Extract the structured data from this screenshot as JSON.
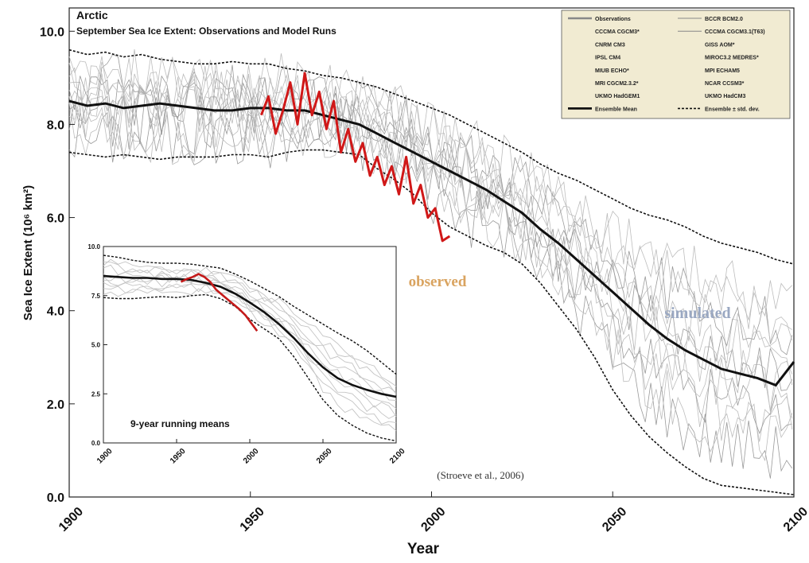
{
  "chart_data": [
    {
      "type": "line",
      "title": "Arctic",
      "subtitle": "September Sea Ice Extent: Observations and Model Runs",
      "xlabel": "Year",
      "ylabel": "Sea Ice Extent (10⁶ km²)",
      "xlim": [
        1900,
        2100
      ],
      "ylim": [
        0,
        10.5
      ],
      "x_ticks": [
        "1900",
        "1950",
        "2000",
        "2050",
        "2100"
      ],
      "y_ticks": [
        "0.0",
        "2.0",
        "4.0",
        "6.0",
        "8.0",
        "10.0"
      ],
      "legend_position": "top-right",
      "legend": [
        {
          "label": "Observations",
          "style": "gray-thick"
        },
        {
          "label": "BCCR BCM2.0",
          "style": "gray-thin"
        },
        {
          "label": "CCCMA CGCM3*",
          "style": "none"
        },
        {
          "label": "CCCMA CGCM3.1(T63)",
          "style": "gray-thin"
        },
        {
          "label": "CNRM CM3",
          "style": "none"
        },
        {
          "label": "GISS AOM*",
          "style": "none"
        },
        {
          "label": "IPSL CM4",
          "style": "none"
        },
        {
          "label": "MIROC3.2 MEDRES*",
          "style": "none"
        },
        {
          "label": "MIUB ECHO*",
          "style": "none"
        },
        {
          "label": "MPI ECHAM5",
          "style": "none"
        },
        {
          "label": "MRI CGCM2.3.2*",
          "style": "none"
        },
        {
          "label": "NCAR CCSM3*",
          "style": "none"
        },
        {
          "label": "UKMO HadGEM1",
          "style": "none"
        },
        {
          "label": "UKMO HadCM3",
          "style": "none"
        },
        {
          "label": "Ensemble Mean",
          "style": "black-thick"
        },
        {
          "label": "Ensemble ± std. dev.",
          "style": "black-dashed"
        }
      ],
      "annotations": {
        "observed": "observed",
        "simulated": "simulated",
        "citation": "(Stroeve et al., 2006)"
      },
      "series": [
        {
          "name": "Ensemble Mean",
          "x": [
            1900,
            1905,
            1910,
            1915,
            1920,
            1925,
            1930,
            1935,
            1940,
            1945,
            1950,
            1955,
            1960,
            1965,
            1970,
            1975,
            1980,
            1985,
            1990,
            1995,
            2000,
            2005,
            2010,
            2015,
            2020,
            2025,
            2030,
            2035,
            2040,
            2045,
            2050,
            2055,
            2060,
            2065,
            2070,
            2075,
            2080,
            2085,
            2090,
            2095,
            2100
          ],
          "y": [
            8.5,
            8.4,
            8.45,
            8.35,
            8.4,
            8.45,
            8.4,
            8.35,
            8.3,
            8.3,
            8.35,
            8.35,
            8.3,
            8.3,
            8.2,
            8.1,
            8.0,
            7.8,
            7.6,
            7.4,
            7.2,
            7.0,
            6.8,
            6.6,
            6.35,
            6.1,
            5.75,
            5.45,
            5.1,
            4.75,
            4.4,
            4.05,
            3.7,
            3.4,
            3.15,
            2.95,
            2.75,
            2.65,
            2.55,
            2.4,
            2.9
          ]
        },
        {
          "name": "Ensemble ± std. dev.",
          "x": [
            1900,
            1905,
            1910,
            1915,
            1920,
            1925,
            1930,
            1935,
            1940,
            1945,
            1950,
            1955,
            1960,
            1965,
            1970,
            1975,
            1980,
            1985,
            1990,
            1995,
            2000,
            2005,
            2010,
            2015,
            2020,
            2025,
            2030,
            2035,
            2040,
            2045,
            2050,
            2055,
            2060,
            2065,
            2070,
            2075,
            2080,
            2085,
            2090,
            2095,
            2100
          ],
          "y": [
            9.6,
            9.5,
            9.55,
            9.45,
            9.5,
            9.4,
            9.35,
            9.3,
            9.3,
            9.35,
            9.3,
            9.3,
            9.2,
            9.15,
            9.05,
            9.0,
            8.9,
            8.8,
            8.65,
            8.5,
            8.35,
            8.2,
            8.0,
            7.8,
            7.6,
            7.4,
            7.15,
            6.95,
            6.8,
            6.6,
            6.4,
            6.2,
            6.05,
            5.95,
            5.8,
            5.6,
            5.45,
            5.35,
            5.25,
            5.1,
            5.0
          ]
        },
        {
          "name": "Ensemble ± std. dev.",
          "x": [
            1900,
            1905,
            1910,
            1915,
            1920,
            1925,
            1930,
            1935,
            1940,
            1945,
            1950,
            1955,
            1960,
            1965,
            1970,
            1975,
            1980,
            1985,
            1990,
            1995,
            2000,
            2005,
            2010,
            2015,
            2020,
            2025,
            2030,
            2035,
            2040,
            2045,
            2050,
            2055,
            2060,
            2065,
            2070,
            2075,
            2080,
            2085,
            2090,
            2095,
            2100
          ],
          "y": [
            7.4,
            7.35,
            7.3,
            7.35,
            7.3,
            7.25,
            7.3,
            7.3,
            7.3,
            7.35,
            7.35,
            7.3,
            7.4,
            7.45,
            7.45,
            7.4,
            7.35,
            7.05,
            6.8,
            6.5,
            6.1,
            5.8,
            5.6,
            5.4,
            5.25,
            5.0,
            4.6,
            4.1,
            3.6,
            3.0,
            2.3,
            1.75,
            1.3,
            0.95,
            0.65,
            0.4,
            0.25,
            0.2,
            0.15,
            0.1,
            0.05
          ]
        },
        {
          "name": "Observations",
          "x": [
            1953,
            1955,
            1957,
            1959,
            1961,
            1963,
            1965,
            1967,
            1969,
            1971,
            1973,
            1975,
            1977,
            1979,
            1981,
            1983,
            1985,
            1987,
            1989,
            1991,
            1993,
            1995,
            1997,
            1999,
            2001,
            2003,
            2005
          ],
          "y": [
            8.2,
            8.6,
            7.8,
            8.3,
            8.9,
            8.0,
            9.1,
            8.2,
            8.7,
            7.9,
            8.5,
            7.4,
            7.9,
            7.2,
            7.6,
            6.9,
            7.3,
            6.7,
            7.1,
            6.5,
            7.3,
            6.3,
            6.7,
            6.0,
            6.2,
            5.5,
            5.6
          ]
        }
      ]
    },
    {
      "type": "line",
      "title": "9-year running means",
      "xlim": [
        1900,
        2100
      ],
      "ylim": [
        0,
        10
      ],
      "x_ticks": [
        "1900",
        "1950",
        "2000",
        "2050",
        "2100"
      ],
      "y_ticks": [
        "0.0",
        "2.5",
        "5.0",
        "7.5",
        "10.0"
      ],
      "series": [
        {
          "name": "Ensemble Mean",
          "x": [
            1900,
            1910,
            1920,
            1930,
            1940,
            1950,
            1960,
            1970,
            1980,
            1990,
            2000,
            2010,
            2020,
            2030,
            2040,
            2050,
            2060,
            2070,
            2080,
            2090,
            2100
          ],
          "y": [
            8.5,
            8.45,
            8.4,
            8.4,
            8.35,
            8.35,
            8.3,
            8.15,
            7.95,
            7.6,
            7.15,
            6.65,
            6.05,
            5.35,
            4.55,
            3.85,
            3.3,
            2.95,
            2.7,
            2.5,
            2.35
          ]
        },
        {
          "name": "Ensemble ± std. dev.",
          "x": [
            1900,
            1910,
            1920,
            1930,
            1940,
            1950,
            1960,
            1970,
            1980,
            1990,
            2000,
            2010,
            2020,
            2030,
            2040,
            2050,
            2060,
            2070,
            2080,
            2090,
            2100
          ],
          "y": [
            9.55,
            9.45,
            9.3,
            9.2,
            9.15,
            9.15,
            9.1,
            9.0,
            8.9,
            8.6,
            8.25,
            7.85,
            7.45,
            6.95,
            6.5,
            6.05,
            5.6,
            5.2,
            4.7,
            4.1,
            3.5
          ]
        },
        {
          "name": "Ensemble ± std. dev.",
          "x": [
            1900,
            1910,
            1920,
            1930,
            1940,
            1950,
            1960,
            1970,
            1980,
            1990,
            2000,
            2010,
            2020,
            2030,
            2040,
            2050,
            2060,
            2070,
            2080,
            2090,
            2100
          ],
          "y": [
            7.4,
            7.35,
            7.35,
            7.4,
            7.45,
            7.4,
            7.5,
            7.55,
            7.35,
            6.95,
            6.3,
            5.8,
            5.3,
            4.4,
            3.3,
            2.2,
            1.4,
            0.9,
            0.5,
            0.25,
            0.1
          ]
        },
        {
          "name": "Observations",
          "x": [
            1953,
            1957,
            1961,
            1965,
            1969,
            1973,
            1977,
            1981,
            1985,
            1989,
            1993,
            1997,
            2001,
            2005
          ],
          "y": [
            8.2,
            8.35,
            8.45,
            8.6,
            8.45,
            8.2,
            7.8,
            7.55,
            7.3,
            7.05,
            6.8,
            6.5,
            6.1,
            5.7
          ]
        }
      ]
    }
  ]
}
